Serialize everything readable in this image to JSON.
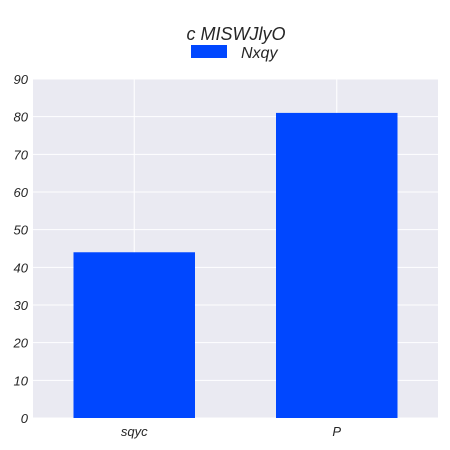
{
  "chart_data": {
    "type": "bar",
    "title": "c MISWJlyO",
    "categories": [
      "sqyc",
      "P"
    ],
    "series": [
      {
        "name": "Nxqy",
        "values": [
          44,
          81
        ],
        "color": "#0047ff"
      }
    ],
    "xlabel": "",
    "ylabel": "",
    "ylim": [
      0,
      90
    ],
    "yticks": [
      0,
      10,
      20,
      30,
      40,
      50,
      60,
      70,
      80,
      90
    ],
    "grid": true,
    "legend_position": "top-center",
    "plot_background": "#eaeaf2",
    "grid_color": "#ffffff"
  }
}
